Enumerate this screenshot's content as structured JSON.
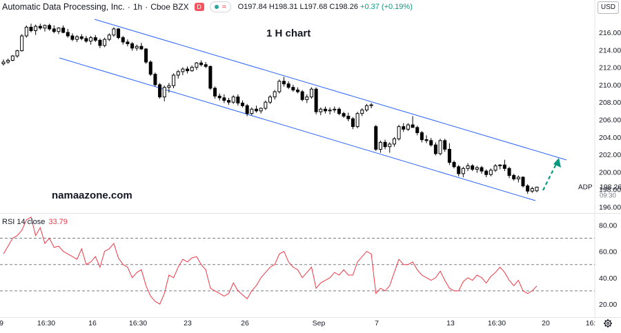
{
  "header": {
    "symbol": "Automatic Data Processing, Inc.",
    "interval": "1h",
    "exchange": "Cboe BZX",
    "flag_label": "D",
    "status_dot_color": "#26a69a",
    "open": "O197.84",
    "high": "H198.31",
    "low": "L197.68",
    "close": "C198.26",
    "change": "+0.37 (+0.19%)"
  },
  "currency": "USD",
  "chart_title": "1 H chart",
  "watermark": "namaazone.com",
  "price_axis": {
    "ticks": [
      "216.00",
      "214.00",
      "212.00",
      "210.00",
      "208.00",
      "206.00",
      "204.00",
      "202.00",
      "200.00",
      "198.00",
      "196.00"
    ],
    "last_price": "198.26",
    "last_time": "09:30",
    "symbol_tag": "ADP"
  },
  "rsi": {
    "label": "RSI 14 close",
    "value": "33.79",
    "ticks": [
      "80.00",
      "60.00",
      "40.00",
      "20.00"
    ]
  },
  "time_axis": [
    "9",
    "16:30",
    "16",
    "16:30",
    "23",
    "26",
    "Sep",
    "7",
    "13",
    "16:30",
    "20",
    "16:"
  ],
  "colors": {
    "candle": "#000000",
    "channel": "#2962ff",
    "rsi_line": "#f23645",
    "arrow": "#089981"
  },
  "chart_data": [
    {
      "type": "candlestick",
      "ylim": [
        196,
        217
      ],
      "series": [
        {
          "name": "ADP",
          "ohlc": [
            [
              212.4,
              212.9,
              212.2,
              212.6
            ],
            [
              212.6,
              213.0,
              212.4,
              212.8
            ],
            [
              212.8,
              213.4,
              212.7,
              213.3
            ],
            [
              213.3,
              214.0,
              213.1,
              213.9
            ],
            [
              213.9,
              215.8,
              213.8,
              215.6
            ],
            [
              215.6,
              216.8,
              215.4,
              216.6
            ],
            [
              216.6,
              217.0,
              216.0,
              216.2
            ],
            [
              216.2,
              216.9,
              215.7,
              216.7
            ],
            [
              216.7,
              217.0,
              216.3,
              216.5
            ],
            [
              216.5,
              216.9,
              216.1,
              216.8
            ],
            [
              216.8,
              217.0,
              216.2,
              216.4
            ],
            [
              216.4,
              216.8,
              215.9,
              216.1
            ],
            [
              216.1,
              216.6,
              215.8,
              216.5
            ],
            [
              216.5,
              216.8,
              215.9,
              216.0
            ],
            [
              216.0,
              216.4,
              215.4,
              215.6
            ],
            [
              215.6,
              215.9,
              215.0,
              215.2
            ],
            [
              215.2,
              215.7,
              214.9,
              215.5
            ],
            [
              215.5,
              215.8,
              215.1,
              215.3
            ],
            [
              215.3,
              215.6,
              214.8,
              215.0
            ],
            [
              215.0,
              215.6,
              214.6,
              215.4
            ],
            [
              215.4,
              215.7,
              214.9,
              215.1
            ],
            [
              215.1,
              215.3,
              214.2,
              214.5
            ],
            [
              214.5,
              215.4,
              214.3,
              215.2
            ],
            [
              215.2,
              215.9,
              215.0,
              215.7
            ],
            [
              215.7,
              216.6,
              215.5,
              216.4
            ],
            [
              216.4,
              216.5,
              215.2,
              215.4
            ],
            [
              215.4,
              215.6,
              214.6,
              214.9
            ],
            [
              214.9,
              215.2,
              214.4,
              214.7
            ],
            [
              214.7,
              214.9,
              213.9,
              214.2
            ],
            [
              214.2,
              214.6,
              213.9,
              214.4
            ],
            [
              214.4,
              214.8,
              214.0,
              214.1
            ],
            [
              214.1,
              214.2,
              212.4,
              212.6
            ],
            [
              212.6,
              212.8,
              211.0,
              211.2
            ],
            [
              211.2,
              211.4,
              209.8,
              210.0
            ],
            [
              210.0,
              210.2,
              208.4,
              208.6
            ],
            [
              208.6,
              209.9,
              208.1,
              209.7
            ],
            [
              209.7,
              210.2,
              209.1,
              209.9
            ],
            [
              209.9,
              211.3,
              209.6,
              211.1
            ],
            [
              211.1,
              211.7,
              210.7,
              211.5
            ],
            [
              211.5,
              212.0,
              211.1,
              211.8
            ],
            [
              211.8,
              212.1,
              211.3,
              211.6
            ],
            [
              211.6,
              212.2,
              211.5,
              212.0
            ],
            [
              212.0,
              212.6,
              211.7,
              212.5
            ],
            [
              212.5,
              212.8,
              212.1,
              212.3
            ],
            [
              212.3,
              212.6,
              211.9,
              212.1
            ],
            [
              212.1,
              212.2,
              209.4,
              209.6
            ],
            [
              209.6,
              209.8,
              208.4,
              208.7
            ],
            [
              208.7,
              209.0,
              208.2,
              208.5
            ],
            [
              208.5,
              208.9,
              207.9,
              208.2
            ],
            [
              208.2,
              208.5,
              207.7,
              208.0
            ],
            [
              208.0,
              208.8,
              207.8,
              208.6
            ],
            [
              208.6,
              208.9,
              207.6,
              207.9
            ],
            [
              207.9,
              208.2,
              207.4,
              207.6
            ],
            [
              207.6,
              207.8,
              206.4,
              206.7
            ],
            [
              206.7,
              207.4,
              206.5,
              207.2
            ],
            [
              207.2,
              207.6,
              206.8,
              207.0
            ],
            [
              207.0,
              207.4,
              206.7,
              207.3
            ],
            [
              207.3,
              208.2,
              207.1,
              208.0
            ],
            [
              208.0,
              208.8,
              207.8,
              208.6
            ],
            [
              208.6,
              209.4,
              208.3,
              209.2
            ],
            [
              209.2,
              210.6,
              209.0,
              210.4
            ],
            [
              210.4,
              210.9,
              209.8,
              210.1
            ],
            [
              210.1,
              210.4,
              209.5,
              209.7
            ],
            [
              209.7,
              210.0,
              209.2,
              209.4
            ],
            [
              209.4,
              209.7,
              209.0,
              209.2
            ],
            [
              209.2,
              209.4,
              208.1,
              208.3
            ],
            [
              208.3,
              208.9,
              207.9,
              208.6
            ],
            [
              208.6,
              209.7,
              208.4,
              209.5
            ],
            [
              209.5,
              209.7,
              206.6,
              206.9
            ],
            [
              206.9,
              207.4,
              206.5,
              207.2
            ],
            [
              207.2,
              207.5,
              206.7,
              207.0
            ],
            [
              207.0,
              207.4,
              206.6,
              207.1
            ],
            [
              207.1,
              207.5,
              206.8,
              207.2
            ],
            [
              207.2,
              207.4,
              206.5,
              206.7
            ],
            [
              206.7,
              206.9,
              206.2,
              206.4
            ],
            [
              206.4,
              206.8,
              205.8,
              206.1
            ],
            [
              206.1,
              206.3,
              204.9,
              205.2
            ],
            [
              205.2,
              206.9,
              205.0,
              206.7
            ],
            [
              206.7,
              207.3,
              206.4,
              207.1
            ],
            [
              207.1,
              207.8,
              206.9,
              207.6
            ],
            [
              207.6,
              207.9,
              207.3,
              207.7
            ],
            [
              205.2,
              205.4,
              202.4,
              202.6
            ],
            [
              202.6,
              203.6,
              202.2,
              203.4
            ],
            [
              203.4,
              203.7,
              202.6,
              202.9
            ],
            [
              202.9,
              203.4,
              202.2,
              203.2
            ],
            [
              203.2,
              204.0,
              202.9,
              203.8
            ],
            [
              203.8,
              205.4,
              203.6,
              205.2
            ],
            [
              205.2,
              205.6,
              204.6,
              204.9
            ],
            [
              204.9,
              205.6,
              204.7,
              205.4
            ],
            [
              205.4,
              206.4,
              205.2,
              205.1
            ],
            [
              205.1,
              205.3,
              204.2,
              204.5
            ],
            [
              204.5,
              204.7,
              203.4,
              203.7
            ],
            [
              203.7,
              204.2,
              203.3,
              203.6
            ],
            [
              203.6,
              203.9,
              202.9,
              203.1
            ],
            [
              203.1,
              203.4,
              201.9,
              202.1
            ],
            [
              202.1,
              203.8,
              201.9,
              203.6
            ],
            [
              203.6,
              203.8,
              202.3,
              202.6
            ],
            [
              202.6,
              203.3,
              200.8,
              201.1
            ],
            [
              201.1,
              201.3,
              200.4,
              200.6
            ],
            [
              200.6,
              200.8,
              199.5,
              199.8
            ],
            [
              199.8,
              200.6,
              199.4,
              200.4
            ],
            [
              200.4,
              201.0,
              200.1,
              200.7
            ],
            [
              200.7,
              200.9,
              200.1,
              200.3
            ],
            [
              200.3,
              200.7,
              199.9,
              200.5
            ],
            [
              200.5,
              200.7,
              199.8,
              200.1
            ],
            [
              200.1,
              200.3,
              199.4,
              199.7
            ],
            [
              199.7,
              200.4,
              199.5,
              200.2
            ],
            [
              200.2,
              200.9,
              200.0,
              200.7
            ],
            [
              200.7,
              200.9,
              200.3,
              200.8
            ],
            [
              200.8,
              201.4,
              200.1,
              200.4
            ],
            [
              200.4,
              200.6,
              199.3,
              199.6
            ],
            [
              199.6,
              199.8,
              199.0,
              199.2
            ],
            [
              199.2,
              199.6,
              198.8,
              199.4
            ],
            [
              199.4,
              199.5,
              198.2,
              198.4
            ],
            [
              198.4,
              198.6,
              197.5,
              197.8
            ],
            [
              197.8,
              198.3,
              197.6,
              198.1
            ],
            [
              197.84,
              198.31,
              197.68,
              198.26
            ]
          ]
        }
      ]
    },
    {
      "type": "line",
      "ylim": [
        15,
        92
      ],
      "series": [
        {
          "name": "RSI 14 close",
          "values": [
            58,
            64,
            70,
            72,
            76,
            84,
            86,
            72,
            78,
            66,
            70,
            63,
            64,
            60,
            58,
            56,
            54,
            62,
            50,
            52,
            56,
            48,
            60,
            62,
            66,
            55,
            50,
            48,
            40,
            44,
            46,
            34,
            26,
            22,
            20,
            28,
            42,
            40,
            48,
            54,
            52,
            55,
            56,
            50,
            46,
            32,
            30,
            28,
            26,
            28,
            36,
            30,
            27,
            24,
            30,
            34,
            40,
            44,
            48,
            50,
            58,
            60,
            52,
            48,
            46,
            40,
            44,
            48,
            32,
            36,
            38,
            40,
            44,
            42,
            46,
            42,
            42,
            52,
            56,
            60,
            58,
            28,
            32,
            30,
            34,
            44,
            54,
            50,
            50,
            52,
            46,
            42,
            40,
            38,
            40,
            45,
            38,
            32,
            30,
            30,
            37,
            40,
            38,
            42,
            40,
            36,
            41,
            44,
            48,
            44,
            38,
            34,
            38,
            30,
            28,
            30,
            33.79
          ]
        }
      ]
    }
  ]
}
